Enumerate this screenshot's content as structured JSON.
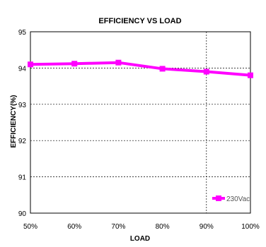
{
  "chart_data": {
    "type": "line",
    "title": "EFFICIENCY VS  LOAD",
    "xlabel": "LOAD",
    "ylabel": "EFFICIENCY(%)",
    "categories": [
      "50%",
      "60%",
      "70%",
      "80%",
      "90%",
      "100%"
    ],
    "ylim": [
      90,
      95
    ],
    "yticks": [
      "90",
      "91",
      "92",
      "93",
      "94",
      "95"
    ],
    "grid": "dashed",
    "legend_position": "bottom-right",
    "series": [
      {
        "name": "230Vac",
        "color": "#ff00ff",
        "marker": "square",
        "values": [
          94.1,
          94.12,
          94.15,
          93.98,
          93.9,
          93.8
        ]
      }
    ]
  }
}
